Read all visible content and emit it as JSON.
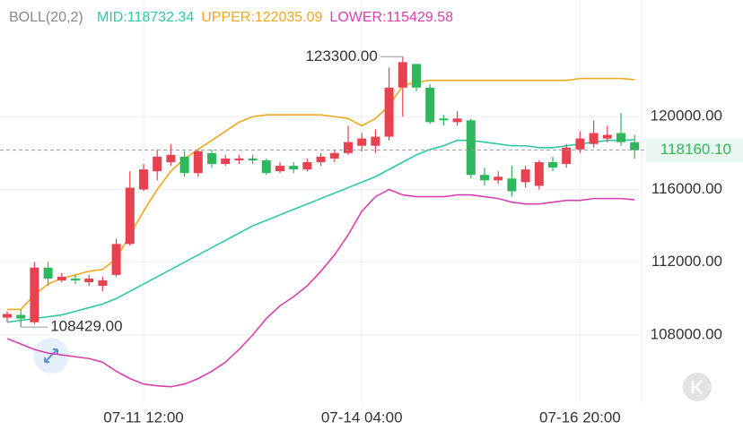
{
  "chart_data": {
    "type": "candlestick",
    "indicator": "BOLL(20,2)",
    "categories": [
      null,
      null,
      null,
      null,
      null,
      null,
      null,
      null,
      null,
      null,
      "07-11 12:00",
      null,
      null,
      null,
      null,
      null,
      null,
      null,
      null,
      null,
      null,
      null,
      null,
      null,
      null,
      null,
      "07-14 04:00",
      null,
      null,
      null,
      null,
      null,
      null,
      null,
      null,
      null,
      null,
      null,
      null,
      null,
      null,
      null,
      "07-16 20:00",
      null,
      null,
      null,
      null
    ],
    "open": [
      108950,
      109100,
      108700,
      111700,
      111000,
      111100,
      110900,
      110700,
      111300,
      113000,
      116000,
      117000,
      117500,
      117800,
      116900,
      118000,
      117400,
      117600,
      117700,
      117600,
      117000,
      117300,
      117100,
      117500,
      117700,
      118000,
      118400,
      118400,
      118900,
      121600,
      122900,
      121600,
      119900,
      119700,
      119800,
      116800,
      116500,
      116600,
      116400,
      116200,
      117500,
      117400,
      118200,
      118500,
      118800,
      119100,
      118600
    ],
    "high": [
      109300,
      109400,
      112000,
      112000,
      111400,
      111300,
      111300,
      111200,
      113300,
      117000,
      117400,
      118200,
      118500,
      118100,
      118200,
      118200,
      117900,
      117900,
      117900,
      117700,
      117500,
      117500,
      117700,
      118000,
      118200,
      119500,
      119100,
      119300,
      122700,
      123300,
      122900,
      121800,
      120100,
      120300,
      119900,
      117200,
      117000,
      117300,
      117300,
      117600,
      117800,
      118500,
      119200,
      119800,
      119500,
      120200,
      119000
    ],
    "low": [
      108700,
      108429,
      108600,
      110700,
      110900,
      110800,
      110700,
      110400,
      111200,
      112900,
      115900,
      116500,
      117300,
      116700,
      116700,
      117200,
      117300,
      117400,
      117400,
      116800,
      116900,
      116900,
      117000,
      117300,
      117500,
      117900,
      118100,
      118000,
      118700,
      120000,
      121400,
      119600,
      119500,
      119500,
      116600,
      116200,
      116300,
      115600,
      116100,
      116000,
      117000,
      117200,
      118000,
      118300,
      118600,
      118400,
      117700
    ],
    "close": [
      109150,
      108900,
      111700,
      111100,
      111200,
      111000,
      111100,
      111000,
      113000,
      116100,
      117100,
      117800,
      117900,
      116900,
      118100,
      117400,
      117700,
      117700,
      117600,
      116900,
      117300,
      117100,
      117500,
      117800,
      118000,
      118600,
      118800,
      118900,
      121600,
      123000,
      121600,
      119700,
      119800,
      119900,
      116800,
      116500,
      116700,
      115900,
      117100,
      117500,
      117200,
      118300,
      118800,
      119100,
      119000,
      118600,
      118160.1
    ],
    "up_color": "#e8414f",
    "down_color": "#2fb75e",
    "bands": [
      {
        "name": "MID:118732.34",
        "color": "#2ec9a6",
        "values": [
          108700,
          108800,
          108900,
          109000,
          109100,
          109300,
          109500,
          109700,
          110000,
          110400,
          110800,
          111200,
          111600,
          112000,
          112400,
          112800,
          113200,
          113600,
          114000,
          114300,
          114600,
          114900,
          115200,
          115500,
          115800,
          116100,
          116400,
          116700,
          117100,
          117500,
          117900,
          118200,
          118400,
          118700,
          118700,
          118600,
          118500,
          118400,
          118400,
          118300,
          118300,
          118400,
          118500,
          118600,
          118700,
          118700,
          118732.34
        ]
      },
      {
        "name": "UPPER:122035.09",
        "color": "#f0a81c",
        "values": [
          109400,
          109400,
          110200,
          110800,
          111100,
          111300,
          111500,
          111600,
          112200,
          113500,
          114800,
          116000,
          117000,
          117700,
          118200,
          118700,
          119200,
          119700,
          120000,
          120100,
          120100,
          120100,
          120100,
          120100,
          120000,
          119900,
          119500,
          119900,
          120600,
          121700,
          121900,
          122000,
          122000,
          122000,
          122000,
          122000,
          122000,
          122000,
          122000,
          122000,
          122000,
          122000,
          122100,
          122100,
          122100,
          122100,
          122035.09
        ]
      },
      {
        "name": "LOWER:115429.58",
        "color": "#d83fb0",
        "values": [
          107800,
          107500,
          107200,
          107000,
          106900,
          106800,
          106700,
          106500,
          106000,
          105600,
          105300,
          105200,
          105150,
          105300,
          105600,
          106000,
          106500,
          107200,
          108000,
          108900,
          109600,
          110100,
          110700,
          111500,
          112400,
          113500,
          114800,
          115600,
          116000,
          115700,
          115600,
          115600,
          115600,
          115700,
          115700,
          115600,
          115500,
          115300,
          115200,
          115200,
          115300,
          115400,
          115400,
          115500,
          115500,
          115500,
          115429.58
        ]
      }
    ],
    "ylim": [
      104250,
      124200
    ],
    "yticks": [
      {
        "value": 108000,
        "label": "108000.00"
      },
      {
        "value": 112000,
        "label": "112000.00"
      },
      {
        "value": 116000,
        "label": "116000.00"
      },
      {
        "value": 120000,
        "label": "120000.00"
      }
    ],
    "max_marker": {
      "index": 29,
      "value": 123300,
      "label": "123300.00"
    },
    "min_marker": {
      "index": 1,
      "value": 108429,
      "label": "108429.00"
    },
    "last_price": {
      "value": 118160.1,
      "label": "118160.10"
    },
    "grid": true
  }
}
